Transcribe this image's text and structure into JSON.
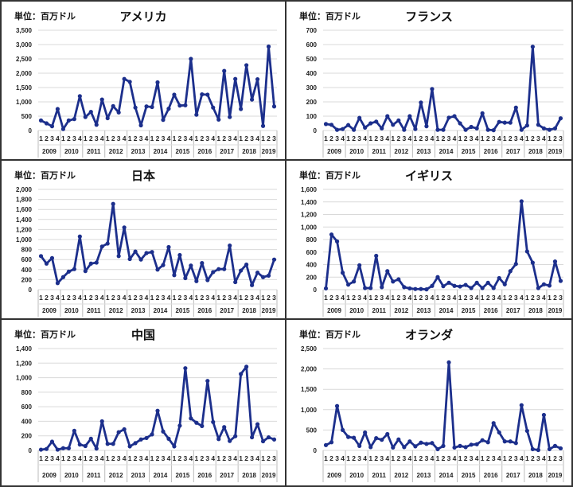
{
  "x_axis": [
    {
      "year": "2009",
      "quarters": [
        "1",
        "2",
        "3",
        "4"
      ]
    },
    {
      "year": "2010",
      "quarters": [
        "1",
        "2",
        "3",
        "4"
      ]
    },
    {
      "year": "2011",
      "quarters": [
        "1",
        "2",
        "3",
        "4"
      ]
    },
    {
      "year": "2012",
      "quarters": [
        "1",
        "2",
        "3",
        "4"
      ]
    },
    {
      "year": "2013",
      "quarters": [
        "1",
        "2",
        "3",
        "4"
      ]
    },
    {
      "year": "2014",
      "quarters": [
        "1",
        "2",
        "3",
        "4"
      ]
    },
    {
      "year": "2015",
      "quarters": [
        "1",
        "2",
        "3",
        "4"
      ]
    },
    {
      "year": "2016",
      "quarters": [
        "1",
        "2",
        "3",
        "4"
      ]
    },
    {
      "year": "2017",
      "quarters": [
        "1",
        "2",
        "3",
        "4"
      ]
    },
    {
      "year": "2018",
      "quarters": [
        "1",
        "2",
        "3",
        "4"
      ]
    },
    {
      "year": "2019",
      "quarters": [
        "1",
        "2",
        "3"
      ]
    }
  ],
  "line_color": "#1c2f8c",
  "grid_color": "#d9d9d9",
  "chart_data": [
    {
      "type": "line",
      "title": "アメリカ",
      "unit_label": "単位：百万ドル",
      "ylim": [
        0,
        3500
      ],
      "yticks": [
        0,
        500,
        1000,
        1500,
        2000,
        2500,
        3000,
        3500
      ],
      "grid": true,
      "values": [
        350,
        250,
        150,
        750,
        50,
        350,
        400,
        1200,
        470,
        650,
        200,
        1080,
        430,
        850,
        630,
        1800,
        1700,
        800,
        180,
        840,
        820,
        1680,
        370,
        760,
        1250,
        870,
        880,
        2500,
        550,
        1260,
        1250,
        800,
        380,
        2080,
        470,
        1800,
        750,
        2280,
        1080,
        1790,
        160,
        2930,
        840
      ]
    },
    {
      "type": "line",
      "title": "フランス",
      "unit_label": "単位：百万ドル",
      "ylim": [
        0,
        700
      ],
      "yticks": [
        0,
        100,
        200,
        300,
        400,
        500,
        600,
        700
      ],
      "grid": true,
      "values": [
        45,
        40,
        5,
        10,
        38,
        5,
        88,
        20,
        50,
        62,
        15,
        100,
        40,
        70,
        5,
        100,
        10,
        195,
        30,
        290,
        5,
        5,
        90,
        100,
        50,
        5,
        25,
        15,
        120,
        5,
        2,
        60,
        55,
        55,
        160,
        5,
        35,
        585,
        40,
        15,
        5,
        15,
        85
      ]
    },
    {
      "type": "line",
      "title": "日本",
      "unit_label": "単位：百万ドル",
      "ylim": [
        0,
        2000
      ],
      "yticks": [
        0,
        200,
        400,
        600,
        800,
        1000,
        1200,
        1400,
        1600,
        1800,
        2000
      ],
      "grid": true,
      "values": [
        670,
        520,
        630,
        130,
        250,
        360,
        410,
        1060,
        370,
        520,
        540,
        860,
        920,
        1710,
        670,
        1240,
        610,
        760,
        600,
        730,
        750,
        400,
        490,
        850,
        290,
        690,
        230,
        480,
        170,
        530,
        190,
        350,
        410,
        410,
        880,
        150,
        380,
        500,
        90,
        340,
        250,
        280,
        600
      ]
    },
    {
      "type": "line",
      "title": "イギリス",
      "unit_label": "単位：百万ドル",
      "ylim": [
        0,
        1600
      ],
      "yticks": [
        0,
        200,
        400,
        600,
        800,
        1000,
        1200,
        1400,
        1600
      ],
      "grid": true,
      "values": [
        20,
        880,
        770,
        270,
        80,
        130,
        390,
        25,
        25,
        540,
        40,
        295,
        130,
        165,
        40,
        20,
        10,
        10,
        5,
        60,
        200,
        55,
        110,
        60,
        50,
        75,
        25,
        110,
        25,
        110,
        25,
        185,
        85,
        295,
        410,
        1410,
        610,
        430,
        25,
        85,
        65,
        450,
        140
      ]
    },
    {
      "type": "line",
      "title": "中国",
      "unit_label": "単位：百万ドル",
      "ylim": [
        0,
        1400
      ],
      "yticks": [
        0,
        200,
        400,
        600,
        800,
        1000,
        1200,
        1400
      ],
      "grid": true,
      "values": [
        10,
        20,
        120,
        10,
        30,
        30,
        270,
        80,
        60,
        160,
        25,
        400,
        90,
        90,
        250,
        290,
        55,
        100,
        150,
        170,
        220,
        545,
        260,
        160,
        55,
        340,
        1130,
        440,
        380,
        335,
        955,
        390,
        155,
        320,
        130,
        195,
        1050,
        1150,
        180,
        360,
        125,
        180,
        150
      ]
    },
    {
      "type": "line",
      "title": "オランダ",
      "unit_label": "単位：百万ドル",
      "ylim": [
        0,
        2500
      ],
      "yticks": [
        0,
        500,
        1000,
        1500,
        2000,
        2500
      ],
      "grid": true,
      "values": [
        130,
        200,
        1090,
        500,
        330,
        310,
        110,
        440,
        80,
        300,
        260,
        400,
        70,
        270,
        80,
        220,
        100,
        190,
        160,
        180,
        30,
        110,
        2160,
        70,
        110,
        80,
        140,
        150,
        250,
        200,
        670,
        440,
        220,
        220,
        180,
        1110,
        480,
        30,
        10,
        870,
        30,
        110,
        50
      ]
    }
  ]
}
